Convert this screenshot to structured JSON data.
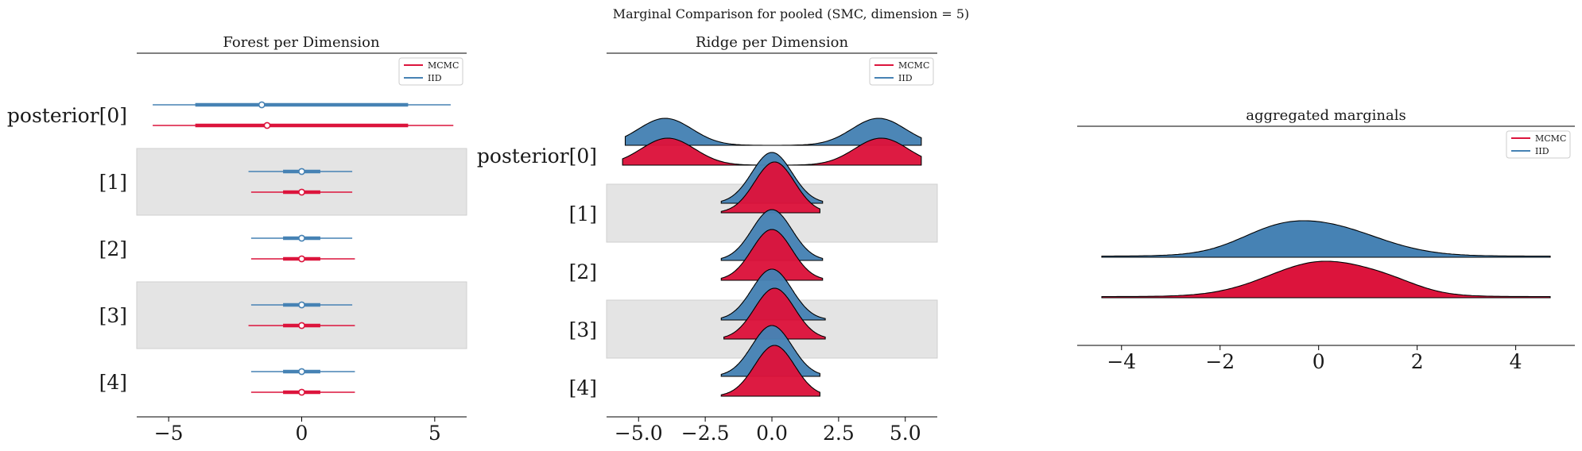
{
  "suptitle": "Marginal Comparison for pooled (SMC, dimension = 5)",
  "colors": {
    "MCMC": "#dc143c",
    "IID": "#4682b4",
    "band": "#e4e4e4",
    "band_edge": "#cfcfcf"
  },
  "legend": {
    "items": [
      "MCMC",
      "IID"
    ]
  },
  "chart_data": [
    {
      "type": "forest",
      "title": "Forest per Dimension",
      "row_labels": [
        "posterior[0]",
        "[1]",
        "[2]",
        "[3]",
        "[4]"
      ],
      "xlim": [
        -6.2,
        6.2
      ],
      "xticks": [
        -5,
        0,
        5
      ],
      "xtick_labels": [
        "−5",
        "0",
        "5"
      ],
      "series": [
        {
          "name": "IID",
          "rows": [
            {
              "mean": -1.5,
              "hdi": [
                -4.0,
                4.0
              ],
              "range": [
                -5.6,
                5.6
              ]
            },
            {
              "mean": 0.0,
              "hdi": [
                -0.7,
                0.7
              ],
              "range": [
                -2.0,
                1.9
              ]
            },
            {
              "mean": 0.0,
              "hdi": [
                -0.7,
                0.7
              ],
              "range": [
                -1.9,
                1.9
              ]
            },
            {
              "mean": 0.0,
              "hdi": [
                -0.7,
                0.7
              ],
              "range": [
                -1.9,
                1.9
              ]
            },
            {
              "mean": 0.0,
              "hdi": [
                -0.7,
                0.7
              ],
              "range": [
                -1.9,
                2.0
              ]
            }
          ]
        },
        {
          "name": "MCMC",
          "rows": [
            {
              "mean": -1.3,
              "hdi": [
                -4.0,
                4.0
              ],
              "range": [
                -5.6,
                5.7
              ]
            },
            {
              "mean": 0.0,
              "hdi": [
                -0.7,
                0.7
              ],
              "range": [
                -1.9,
                1.9
              ]
            },
            {
              "mean": 0.0,
              "hdi": [
                -0.7,
                0.7
              ],
              "range": [
                -1.9,
                2.0
              ]
            },
            {
              "mean": 0.0,
              "hdi": [
                -0.7,
                0.7
              ],
              "range": [
                -2.0,
                2.0
              ]
            },
            {
              "mean": 0.0,
              "hdi": [
                -0.7,
                0.7
              ],
              "range": [
                -1.9,
                2.0
              ]
            }
          ]
        }
      ]
    },
    {
      "type": "ridge",
      "title": "Ridge per Dimension",
      "row_labels": [
        "posterior[0]",
        "[1]",
        "[2]",
        "[3]",
        "[4]"
      ],
      "xlim": [
        -6.2,
        6.2
      ],
      "xticks": [
        -5,
        -2.5,
        0,
        2.5,
        5
      ],
      "xtick_labels": [
        "−5.0",
        "−2.5",
        "0.0",
        "2.5",
        "5.0"
      ],
      "series": [
        {
          "name": "IID",
          "rows": [
            {
              "range": [
                -5.5,
                5.6
              ],
              "components": [
                {
                  "mu": -4.0,
                  "sigma": 1.0
                },
                {
                  "mu": 4.0,
                  "sigma": 1.0
                }
              ]
            },
            {
              "range": [
                -1.9,
                1.9
              ],
              "components": [
                {
                  "mu": 0.0,
                  "sigma": 0.75
                }
              ]
            },
            {
              "range": [
                -1.9,
                1.9
              ],
              "components": [
                {
                  "mu": 0.0,
                  "sigma": 0.75
                }
              ]
            },
            {
              "range": [
                -1.9,
                2.0
              ],
              "components": [
                {
                  "mu": 0.0,
                  "sigma": 0.75
                }
              ]
            },
            {
              "range": [
                -1.9,
                1.8
              ],
              "components": [
                {
                  "mu": 0.0,
                  "sigma": 0.75
                }
              ]
            }
          ]
        },
        {
          "name": "MCMC",
          "rows": [
            {
              "range": [
                -5.6,
                5.6
              ],
              "components": [
                {
                  "mu": -3.9,
                  "sigma": 1.0
                },
                {
                  "mu": 4.1,
                  "sigma": 1.0
                }
              ]
            },
            {
              "range": [
                -1.9,
                1.8
              ],
              "components": [
                {
                  "mu": 0.1,
                  "sigma": 0.75
                }
              ]
            },
            {
              "range": [
                -1.9,
                1.9
              ],
              "components": [
                {
                  "mu": 0.0,
                  "sigma": 0.75
                }
              ]
            },
            {
              "range": [
                -1.8,
                2.0
              ],
              "components": [
                {
                  "mu": 0.1,
                  "sigma": 0.75
                }
              ]
            },
            {
              "range": [
                -1.9,
                1.8
              ],
              "components": [
                {
                  "mu": 0.1,
                  "sigma": 0.75
                }
              ]
            }
          ]
        }
      ]
    },
    {
      "type": "ridge",
      "title": "aggregated marginals",
      "row_labels": [],
      "xlim": [
        -4.9,
        5.2
      ],
      "xticks": [
        -4,
        -2,
        0,
        2,
        4
      ],
      "xtick_labels": [
        "−4",
        "−2",
        "0",
        "2",
        "4"
      ],
      "series": [
        {
          "name": "IID",
          "rows": [
            {
              "range": [
                -4.4,
                4.7
              ],
              "components": [
                {
                  "mu": 0.0,
                  "sigma": 1.15
                },
                {
                  "mu": -1.0,
                  "sigma": 0.7,
                  "w": 0.25
                }
              ]
            }
          ]
        },
        {
          "name": "MCMC",
          "rows": [
            {
              "range": [
                -4.4,
                4.7
              ],
              "components": [
                {
                  "mu": 0.1,
                  "sigma": 1.1
                },
                {
                  "mu": 1.5,
                  "sigma": 0.6,
                  "w": 0.15
                }
              ]
            }
          ]
        }
      ]
    }
  ]
}
